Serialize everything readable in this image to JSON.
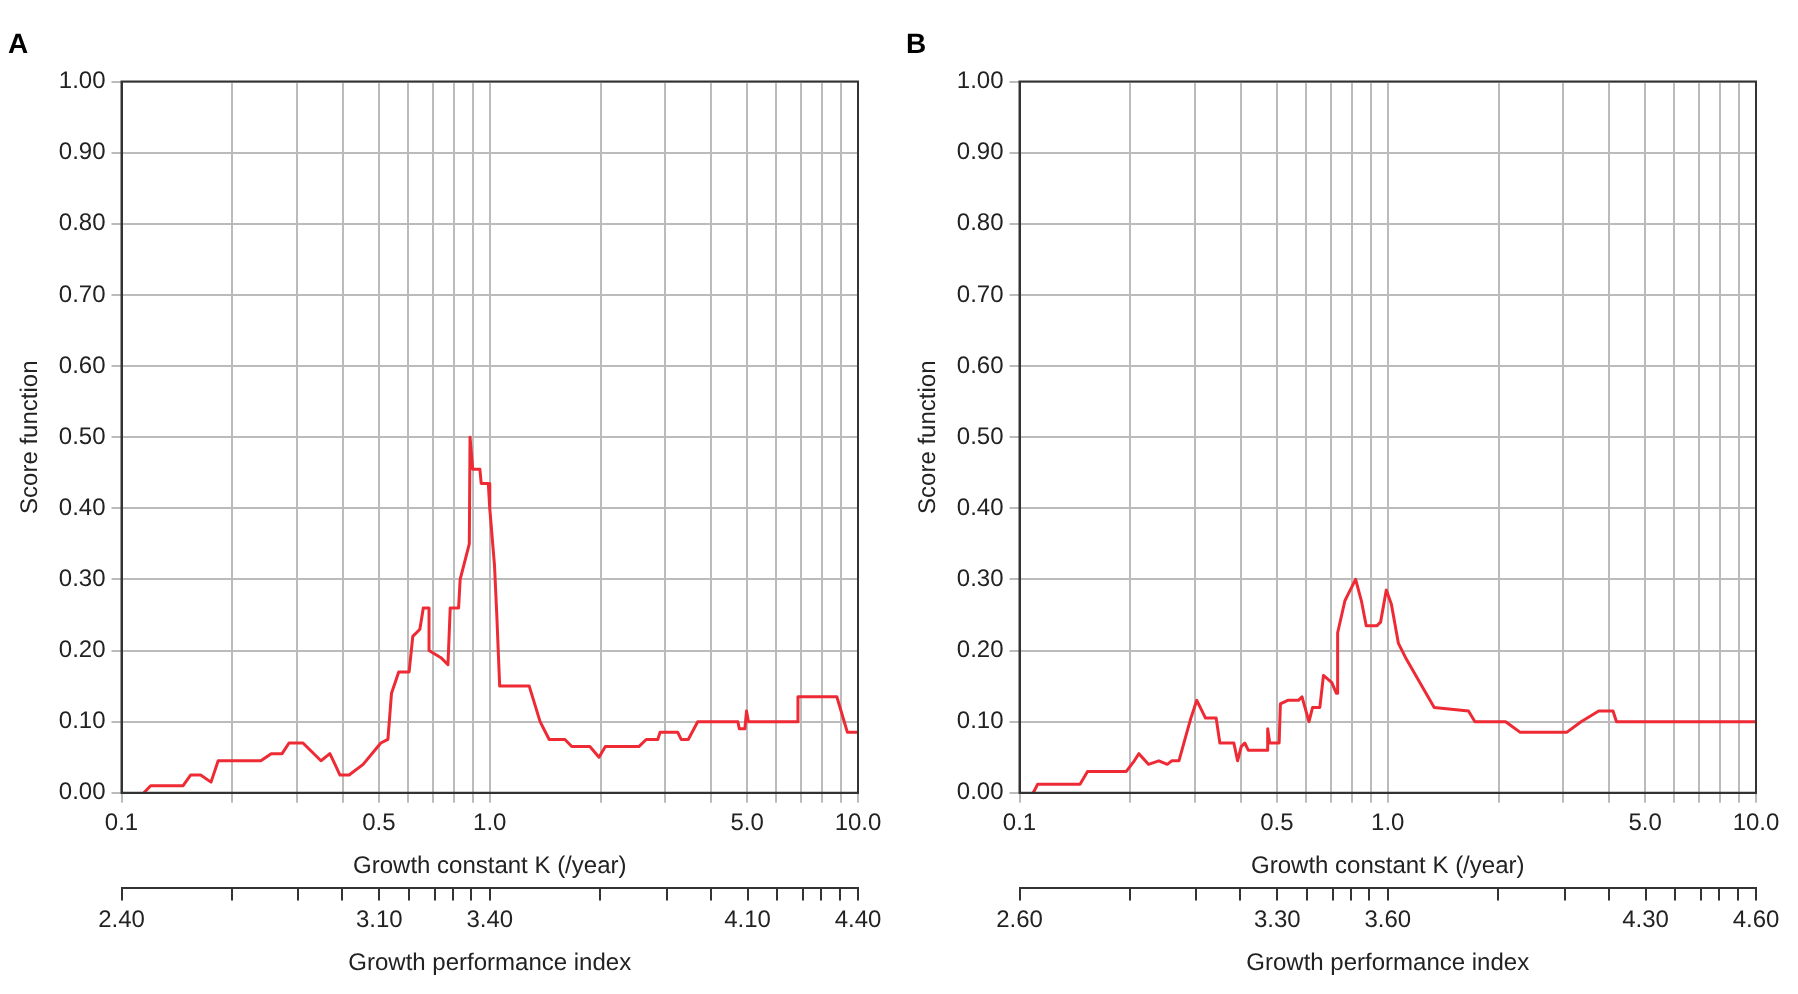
{
  "chart_data": [
    {
      "type": "line",
      "title": "A",
      "xlabel": "Growth constant K (/year)",
      "ylabel": "Score function",
      "x2label": "Growth performance index",
      "log": "x",
      "grid": true,
      "xlim": [
        0.1,
        10
      ],
      "xticks": [
        {
          "value": 0.1,
          "label": "0.1"
        },
        {
          "value": 0.2,
          "label": null
        },
        {
          "value": 0.3,
          "label": null
        },
        {
          "value": 0.4,
          "label": null
        },
        {
          "value": 0.5,
          "label": "0.5"
        },
        {
          "value": 0.6,
          "label": null
        },
        {
          "value": 0.7,
          "label": null
        },
        {
          "value": 0.8,
          "label": null
        },
        {
          "value": 0.9,
          "label": null
        },
        {
          "value": 1,
          "label": "1.0"
        },
        {
          "value": 2,
          "label": null
        },
        {
          "value": 3,
          "label": null
        },
        {
          "value": 4,
          "label": null
        },
        {
          "value": 5,
          "label": "5.0"
        },
        {
          "value": 6,
          "label": null
        },
        {
          "value": 7,
          "label": null
        },
        {
          "value": 8,
          "label": null
        },
        {
          "value": 9,
          "label": null
        },
        {
          "value": 10,
          "label": "10.0"
        }
      ],
      "x2lim": [
        2.4,
        4.4
      ],
      "x2ticks": [
        {
          "value": 2.4,
          "label": "2.40"
        },
        {
          "value": 2.7,
          "label": null
        },
        {
          "value": 2.88,
          "label": null
        },
        {
          "value": 3.0,
          "label": null
        },
        {
          "value": 3.1,
          "label": "3.10"
        },
        {
          "value": 3.18,
          "label": null
        },
        {
          "value": 3.25,
          "label": null
        },
        {
          "value": 3.3,
          "label": null
        },
        {
          "value": 3.35,
          "label": null
        },
        {
          "value": 3.4,
          "label": "3.40"
        },
        {
          "value": 3.7,
          "label": null
        },
        {
          "value": 3.88,
          "label": null
        },
        {
          "value": 4.0,
          "label": null
        },
        {
          "value": 4.1,
          "label": "4.10"
        },
        {
          "value": 4.18,
          "label": null
        },
        {
          "value": 4.25,
          "label": null
        },
        {
          "value": 4.3,
          "label": null
        },
        {
          "value": 4.35,
          "label": null
        },
        {
          "value": 4.4,
          "label": "4.40"
        }
      ],
      "ylim": [
        0,
        1
      ],
      "yticks": [
        {
          "value": 0,
          "label": "0.00"
        },
        {
          "value": 0.1,
          "label": "0.10"
        },
        {
          "value": 0.2,
          "label": "0.20"
        },
        {
          "value": 0.3,
          "label": "0.30"
        },
        {
          "value": 0.4,
          "label": "0.40"
        },
        {
          "value": 0.5,
          "label": "0.50"
        },
        {
          "value": 0.6,
          "label": "0.60"
        },
        {
          "value": 0.7,
          "label": "0.70"
        },
        {
          "value": 0.8,
          "label": "0.80"
        },
        {
          "value": 0.9,
          "label": "0.90"
        },
        {
          "value": 1,
          "label": "1.00"
        }
      ],
      "series": [
        {
          "color": "#ee2a35",
          "x": [
            0.115,
            0.12,
            0.147,
            0.154,
            0.164,
            0.175,
            0.183,
            0.239,
            0.255,
            0.273,
            0.285,
            0.311,
            0.348,
            0.368,
            0.38,
            0.392,
            0.415,
            0.453,
            0.506,
            0.529,
            0.541,
            0.566,
            0.604,
            0.618,
            0.646,
            0.66,
            0.684,
            0.684,
            0.737,
            0.77,
            0.781,
            0.823,
            0.831,
            0.88,
            0.884,
            0.899,
            0.94,
            0.948,
            0.991,
            1.0,
            1.03,
            1.045,
            1.064,
            1.28,
            1.37,
            1.45,
            1.6,
            1.67,
            1.87,
            1.98,
            2.06,
            2.54,
            2.66,
            2.86,
            2.9,
            3.24,
            3.31,
            3.46,
            3.67,
            4.72,
            4.76,
            4.93,
            4.98,
            5.04,
            6.81,
            6.87,
            8.76,
            9.36,
            10
          ],
          "values": [
            0,
            0.01,
            0.01,
            0.025,
            0.025,
            0.015,
            0.045,
            0.045,
            0.055,
            0.055,
            0.07,
            0.07,
            0.045,
            0.055,
            0.04,
            0.025,
            0.025,
            0.04,
            0.07,
            0.075,
            0.14,
            0.17,
            0.17,
            0.22,
            0.23,
            0.26,
            0.26,
            0.2,
            0.19,
            0.18,
            0.26,
            0.26,
            0.3,
            0.35,
            0.5,
            0.455,
            0.455,
            0.435,
            0.435,
            0.4,
            0.32,
            0.25,
            0.15,
            0.15,
            0.1,
            0.075,
            0.075,
            0.065,
            0.065,
            0.05,
            0.065,
            0.065,
            0.075,
            0.075,
            0.085,
            0.085,
            0.075,
            0.075,
            0.1,
            0.1,
            0.09,
            0.09,
            0.115,
            0.1,
            0.1,
            0.135,
            0.135,
            0.085,
            0.085
          ]
        }
      ]
    },
    {
      "type": "line",
      "title": "B",
      "xlabel": "Growth constant K (/year)",
      "ylabel": "Score function",
      "x2label": "Growth performance index",
      "log": "x",
      "grid": true,
      "xlim": [
        0.1,
        10
      ],
      "xticks": [
        {
          "value": 0.1,
          "label": "0.1"
        },
        {
          "value": 0.2,
          "label": null
        },
        {
          "value": 0.3,
          "label": null
        },
        {
          "value": 0.4,
          "label": null
        },
        {
          "value": 0.5,
          "label": "0.5"
        },
        {
          "value": 0.6,
          "label": null
        },
        {
          "value": 0.7,
          "label": null
        },
        {
          "value": 0.8,
          "label": null
        },
        {
          "value": 0.9,
          "label": null
        },
        {
          "value": 1,
          "label": "1.0"
        },
        {
          "value": 2,
          "label": null
        },
        {
          "value": 3,
          "label": null
        },
        {
          "value": 4,
          "label": null
        },
        {
          "value": 5,
          "label": "5.0"
        },
        {
          "value": 6,
          "label": null
        },
        {
          "value": 7,
          "label": null
        },
        {
          "value": 8,
          "label": null
        },
        {
          "value": 9,
          "label": null
        },
        {
          "value": 10,
          "label": "10.0"
        }
      ],
      "x2lim": [
        2.6,
        4.6
      ],
      "x2ticks": [
        {
          "value": 2.6,
          "label": "2.60"
        },
        {
          "value": 2.9,
          "label": null
        },
        {
          "value": 3.08,
          "label": null
        },
        {
          "value": 3.2,
          "label": null
        },
        {
          "value": 3.3,
          "label": "3.30"
        },
        {
          "value": 3.38,
          "label": null
        },
        {
          "value": 3.45,
          "label": null
        },
        {
          "value": 3.5,
          "label": null
        },
        {
          "value": 3.55,
          "label": null
        },
        {
          "value": 3.6,
          "label": "3.60"
        },
        {
          "value": 3.9,
          "label": null
        },
        {
          "value": 4.08,
          "label": null
        },
        {
          "value": 4.2,
          "label": null
        },
        {
          "value": 4.3,
          "label": "4.30"
        },
        {
          "value": 4.38,
          "label": null
        },
        {
          "value": 4.45,
          "label": null
        },
        {
          "value": 4.5,
          "label": null
        },
        {
          "value": 4.55,
          "label": null
        },
        {
          "value": 4.6,
          "label": "4.60"
        }
      ],
      "ylim": [
        0,
        1
      ],
      "yticks": [
        {
          "value": 0,
          "label": "0.00"
        },
        {
          "value": 0.1,
          "label": "0.10"
        },
        {
          "value": 0.2,
          "label": "0.20"
        },
        {
          "value": 0.3,
          "label": "0.30"
        },
        {
          "value": 0.4,
          "label": "0.40"
        },
        {
          "value": 0.5,
          "label": "0.50"
        },
        {
          "value": 0.6,
          "label": "0.60"
        },
        {
          "value": 0.7,
          "label": "0.70"
        },
        {
          "value": 0.8,
          "label": "0.80"
        },
        {
          "value": 0.9,
          "label": "0.90"
        },
        {
          "value": 1,
          "label": "1.00"
        }
      ],
      "series": [
        {
          "color": "#ee2a35",
          "x": [
            0.109,
            0.112,
            0.146,
            0.153,
            0.195,
            0.205,
            0.211,
            0.224,
            0.239,
            0.252,
            0.259,
            0.271,
            0.283,
            0.292,
            0.303,
            0.32,
            0.342,
            0.35,
            0.382,
            0.391,
            0.4,
            0.409,
            0.418,
            0.468,
            0.472,
            0.478,
            0.507,
            0.511,
            0.535,
            0.572,
            0.585,
            0.611,
            0.625,
            0.654,
            0.669,
            0.705,
            0.725,
            0.731,
            0.765,
            0.782,
            0.818,
            0.848,
            0.874,
            0.935,
            0.956,
            0.991,
            1.023,
            1.069,
            1.118,
            1.337,
            1.657,
            1.725,
            2.09,
            2.29,
            3.06,
            3.35,
            3.74,
            4.09,
            4.18,
            10
          ],
          "values": [
            0,
            0.012,
            0.012,
            0.03,
            0.03,
            0.045,
            0.055,
            0.04,
            0.045,
            0.04,
            0.045,
            0.045,
            0.08,
            0.105,
            0.13,
            0.105,
            0.105,
            0.07,
            0.07,
            0.045,
            0.065,
            0.07,
            0.06,
            0.06,
            0.09,
            0.07,
            0.07,
            0.125,
            0.13,
            0.13,
            0.135,
            0.1,
            0.12,
            0.12,
            0.165,
            0.155,
            0.14,
            0.225,
            0.27,
            0.28,
            0.3,
            0.27,
            0.235,
            0.235,
            0.24,
            0.285,
            0.265,
            0.21,
            0.19,
            0.12,
            0.115,
            0.1,
            0.1,
            0.085,
            0.085,
            0.1,
            0.115,
            0.115,
            0.1,
            0.1
          ]
        }
      ]
    }
  ]
}
